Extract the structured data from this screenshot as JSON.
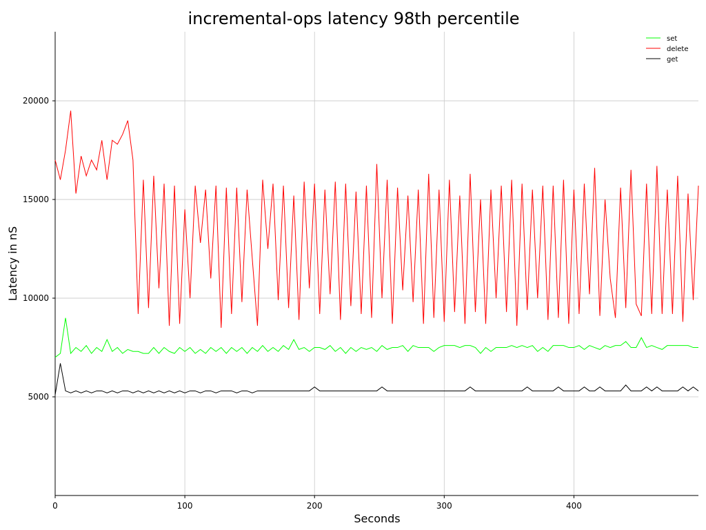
{
  "chart_data": {
    "type": "line",
    "title": "incremental-ops latency 98th percentile",
    "x_label": "Seconds",
    "y_label": "Latency in nS",
    "xlim": [
      0,
      496
    ],
    "ylim": [
      0,
      23500
    ],
    "xticks": [
      0,
      100,
      200,
      300,
      400
    ],
    "yticks": [
      5000,
      10000,
      15000,
      20000
    ],
    "grid": true,
    "legend": "upper right",
    "x": [
      0,
      4,
      8,
      12,
      16,
      20,
      24,
      28,
      32,
      36,
      40,
      44,
      48,
      52,
      56,
      60,
      64,
      68,
      72,
      76,
      80,
      84,
      88,
      92,
      96,
      100,
      104,
      108,
      112,
      116,
      120,
      124,
      128,
      132,
      136,
      140,
      144,
      148,
      152,
      156,
      160,
      164,
      168,
      172,
      176,
      180,
      184,
      188,
      192,
      196,
      200,
      204,
      208,
      212,
      216,
      220,
      224,
      228,
      232,
      236,
      240,
      244,
      248,
      252,
      256,
      260,
      264,
      268,
      272,
      276,
      280,
      284,
      288,
      292,
      296,
      300,
      304,
      308,
      312,
      316,
      320,
      324,
      328,
      332,
      336,
      340,
      344,
      348,
      352,
      356,
      360,
      364,
      368,
      372,
      376,
      380,
      384,
      388,
      392,
      396,
      400,
      404,
      408,
      412,
      416,
      420,
      424,
      428,
      432,
      436,
      440,
      444,
      448,
      452,
      456,
      460,
      464,
      468,
      472,
      476,
      480,
      484,
      488,
      492,
      496
    ],
    "series": [
      {
        "name": "set",
        "color": "#00ff00",
        "values": [
          7000,
          7200,
          9000,
          7200,
          7500,
          7300,
          7600,
          7200,
          7500,
          7300,
          7900,
          7300,
          7500,
          7200,
          7400,
          7300,
          7300,
          7200,
          7200,
          7500,
          7200,
          7500,
          7300,
          7200,
          7500,
          7300,
          7500,
          7200,
          7400,
          7200,
          7500,
          7300,
          7500,
          7200,
          7500,
          7300,
          7500,
          7200,
          7500,
          7300,
          7600,
          7300,
          7500,
          7300,
          7600,
          7400,
          7900,
          7400,
          7500,
          7300,
          7500,
          7500,
          7400,
          7600,
          7300,
          7500,
          7200,
          7500,
          7300,
          7500,
          7400,
          7500,
          7300,
          7600,
          7400,
          7500,
          7500,
          7600,
          7300,
          7600,
          7500,
          7500,
          7500,
          7300,
          7500,
          7600,
          7600,
          7600,
          7500,
          7600,
          7600,
          7500,
          7200,
          7500,
          7300,
          7500,
          7500,
          7500,
          7600,
          7500,
          7600,
          7500,
          7600,
          7300,
          7500,
          7300,
          7600,
          7600,
          7600,
          7500,
          7500,
          7600,
          7400,
          7600,
          7500,
          7400,
          7600,
          7500,
          7600,
          7600,
          7800,
          7500,
          7500,
          8000,
          7500,
          7600,
          7500,
          7400,
          7600,
          7600,
          7600,
          7600,
          7600,
          7500,
          7500
        ]
      },
      {
        "name": "delete",
        "color": "#ff0000",
        "values": [
          17000,
          16000,
          17500,
          19500,
          15300,
          17200,
          16200,
          17000,
          16500,
          18000,
          16000,
          18000,
          17800,
          18300,
          19000,
          17000,
          9200,
          16000,
          9500,
          16200,
          10500,
          15800,
          8600,
          15700,
          8700,
          14500,
          10000,
          15700,
          12800,
          15500,
          11000,
          15700,
          8500,
          15600,
          9200,
          15600,
          9800,
          15500,
          12000,
          8600,
          16000,
          12500,
          15800,
          9900,
          15700,
          9500,
          15200,
          8900,
          15900,
          10500,
          15800,
          9200,
          15500,
          10200,
          15900,
          8900,
          15800,
          9600,
          15400,
          9200,
          15700,
          9000,
          16800,
          10000,
          16000,
          8700,
          15600,
          10400,
          15200,
          9800,
          15500,
          8700,
          16300,
          9000,
          15500,
          8800,
          16000,
          9300,
          15200,
          8700,
          16300,
          9300,
          15000,
          8700,
          15500,
          10000,
          15700,
          9300,
          16000,
          8600,
          15800,
          9400,
          15500,
          10000,
          15700,
          8900,
          15700,
          9000,
          16000,
          8700,
          15500,
          9200,
          15800,
          10200,
          16600,
          9100,
          15000,
          11000,
          9000,
          15600,
          9500,
          16500,
          9700,
          9100,
          15800,
          9200,
          16700,
          9200,
          15500,
          9200,
          16200,
          8800,
          15300,
          9900,
          15700
        ]
      },
      {
        "name": "get",
        "color": "#000000",
        "values": [
          5100,
          6700,
          5300,
          5200,
          5300,
          5200,
          5300,
          5200,
          5300,
          5300,
          5200,
          5300,
          5200,
          5300,
          5300,
          5200,
          5300,
          5200,
          5300,
          5200,
          5300,
          5200,
          5300,
          5200,
          5300,
          5200,
          5300,
          5300,
          5200,
          5300,
          5300,
          5200,
          5300,
          5300,
          5300,
          5200,
          5300,
          5300,
          5200,
          5300,
          5300,
          5300,
          5300,
          5300,
          5300,
          5300,
          5300,
          5300,
          5300,
          5300,
          5500,
          5300,
          5300,
          5300,
          5300,
          5300,
          5300,
          5300,
          5300,
          5300,
          5300,
          5300,
          5300,
          5500,
          5300,
          5300,
          5300,
          5300,
          5300,
          5300,
          5300,
          5300,
          5300,
          5300,
          5300,
          5300,
          5300,
          5300,
          5300,
          5300,
          5500,
          5300,
          5300,
          5300,
          5300,
          5300,
          5300,
          5300,
          5300,
          5300,
          5300,
          5500,
          5300,
          5300,
          5300,
          5300,
          5300,
          5500,
          5300,
          5300,
          5300,
          5300,
          5500,
          5300,
          5300,
          5500,
          5300,
          5300,
          5300,
          5300,
          5600,
          5300,
          5300,
          5300,
          5500,
          5300,
          5500,
          5300,
          5300,
          5300,
          5300,
          5500,
          5300,
          5500,
          5300
        ]
      }
    ]
  }
}
